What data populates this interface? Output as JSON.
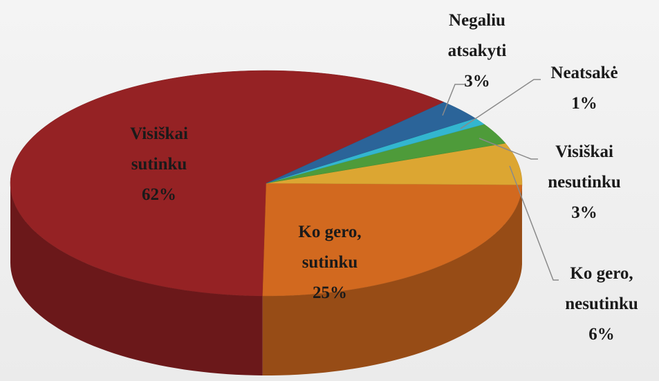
{
  "chart_data": {
    "type": "pie3d",
    "categories": [
      "Visiškai sutinku",
      "Ko gero, sutinku",
      "Ko gero, nesutinku",
      "Visiškai nesutinku",
      "Neatsakė",
      "Negaliu atsakyti"
    ],
    "values": [
      62,
      25,
      6,
      3,
      1,
      3
    ],
    "value_labels": [
      "62%",
      "25%",
      "6%",
      "3%",
      "1%",
      "3%"
    ],
    "colors": [
      "#952224",
      "#d2691f",
      "#dca632",
      "#4e9b3a",
      "#33b6cf",
      "#2b6499"
    ]
  }
}
